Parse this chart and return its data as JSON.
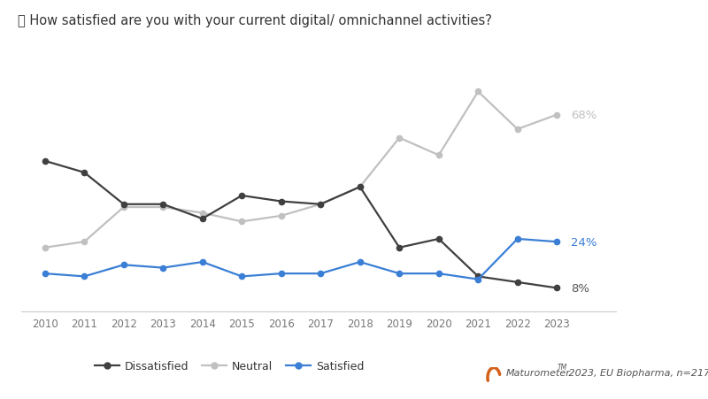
{
  "years": [
    2010,
    2011,
    2012,
    2013,
    2014,
    2015,
    2016,
    2017,
    2018,
    2019,
    2020,
    2021,
    2022,
    2023
  ],
  "dissatisfied": [
    52,
    48,
    37,
    37,
    32,
    40,
    38,
    37,
    43,
    22,
    25,
    12,
    10,
    8
  ],
  "neutral": [
    22,
    24,
    36,
    36,
    34,
    31,
    33,
    37,
    43,
    60,
    54,
    76,
    63,
    68
  ],
  "satisfied": [
    13,
    12,
    16,
    15,
    17,
    12,
    13,
    13,
    17,
    13,
    13,
    11,
    25,
    24
  ],
  "dissatisfied_color": "#404040",
  "neutral_color": "#c0c0c0",
  "satisfied_color": "#3a7fd5",
  "title": "How satisfied are you with your current digital/ omnichannel activities?",
  "label_dissatisfied": "Dissatisfied",
  "label_neutral": "Neutral",
  "label_satisfied": "Satisfied",
  "end_label_neutral": "68%",
  "end_label_satisfied": "24%",
  "end_label_dissatisfied": "8%",
  "footer_text_main": "Maturometer",
  "footer_text_sup": "TM",
  "footer_text_rest": " 2023, EU Biopharma, n=217",
  "background_color": "#ffffff",
  "ylim": [
    0,
    90
  ],
  "xlim_left": 2009.4,
  "xlim_right": 2024.5
}
